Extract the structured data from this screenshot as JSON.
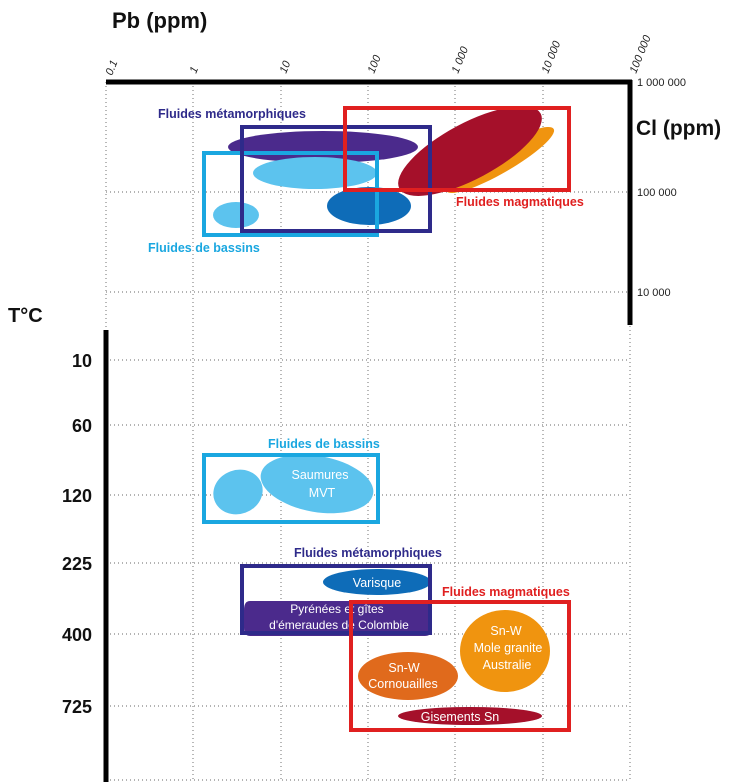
{
  "pb_axis": {
    "title": "Pb (ppm)",
    "ticks": [
      "0.1",
      "1",
      "10",
      "100",
      "1 000",
      "10 000",
      "100 000"
    ]
  },
  "cl_axis": {
    "title": "Cl (ppm)",
    "ticks": [
      "1 000 000",
      "100 000",
      "10 000"
    ]
  },
  "t_axis": {
    "title": "T°C",
    "ticks": [
      "10",
      "60",
      "120",
      "225",
      "400",
      "725"
    ]
  },
  "colors": {
    "metamorphic": "#2e2a8a",
    "basin": "#1aa7e0",
    "magmatic": "#e02020",
    "metamorphic_fill": "#4b2a8c",
    "basin_fill": "#5cc3ee",
    "magmatic_fill": "#a5102a",
    "orange": "#f0940f",
    "tin_orange": "#e06a1c",
    "blue_fill": "#0e6cb8"
  },
  "upper_panel": {
    "label_metamorphic": "Fluides métamorphiques",
    "label_basin": "Fluides de bassins",
    "label_magmatic": "Fluides magmatiques"
  },
  "lower_panel": {
    "label_basin": "Fluides de bassins",
    "label_metamorphic": "Fluides métamorphiques",
    "label_magmatic": "Fluides magmatiques",
    "saumures_line1": "Saumures",
    "saumures_line2": "MVT",
    "variscan": "Varisque",
    "pyrenees_line1": "Pyrénées et gîtes",
    "pyrenees_line2": "d'émeraudes de Colombie",
    "snw_aus_line1": "Sn-W",
    "snw_aus_line2": "Mole granite",
    "snw_aus_line3": "Australie",
    "snw_corn_line1": "Sn-W",
    "snw_corn_line2": "Cornouailles",
    "gisements": "Gisements Sn"
  }
}
